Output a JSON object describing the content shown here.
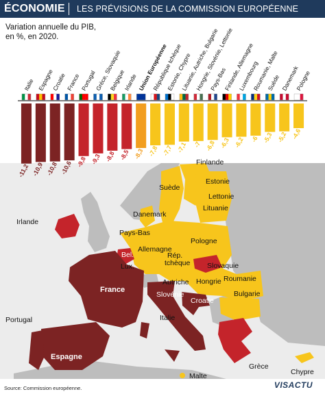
{
  "header": {
    "section": "ÉCONOMIE",
    "title": "LES PRÉVISIONS DE LA COMMISSION EUROPÉENNE"
  },
  "subtitle_line1": "Variation annuelle du PIB,",
  "subtitle_line2": "en %, en 2020.",
  "source": "Source: Commission européenne.",
  "brand": "VISACTU",
  "colors": {
    "dark_red": "#7c2323",
    "red": "#c4242b",
    "orange": "#f29e1f",
    "yellow": "#f7c51c",
    "header_bg": "#1f3a5c"
  },
  "chart_data": {
    "type": "bar",
    "title": "LES PRÉVISIONS DE LA COMMISSION EUROPÉENNE",
    "subtitle": "Variation annuelle du PIB, en %, en 2020.",
    "xlabel": "",
    "ylabel": "",
    "ylim": [
      -12,
      0
    ],
    "grid": false,
    "categories": [
      "Italie",
      "Espagne",
      "Croatie",
      "France",
      "Portugal",
      "Grèce, Slovaquie",
      "Belgique",
      "Irlande",
      "Union Européenne",
      "République tchèque",
      "Estonie, Chypre",
      "Lituanie, Autriche, Bulgarie",
      "Hongrie, Slovénie, Lettonie",
      "Pays-Bas",
      "Finlande, Allemagne",
      "Luxembourg",
      "Roumanie, Malte",
      "Suède",
      "Danemark",
      "Pologne"
    ],
    "values": [
      -11.2,
      -10.9,
      -10.8,
      -10.6,
      -9.8,
      -9.3,
      -8.8,
      -8.5,
      -8.3,
      -7.8,
      -7.7,
      -7.1,
      -7,
      -6.8,
      -6.3,
      -6.2,
      -6,
      -5.3,
      -5.2,
      -4.6
    ],
    "value_labels": [
      "-11,2",
      "-10,9",
      "-10,8",
      "-10,6",
      "-9,8",
      "-9,3",
      "-8,8",
      "-8,5",
      "-8,3",
      "-7,8",
      "-7,7",
      "-7,1",
      "-7",
      "-6,8",
      "-6,3",
      "-6,2",
      "-6",
      "-5,3",
      "-5,2",
      "-4,6"
    ],
    "bar_colors": [
      "#7c2323",
      "#7c2323",
      "#7c2323",
      "#7c2323",
      "#c4242b",
      "#c4242b",
      "#c4242b",
      "#c4242b",
      "#f29e1f",
      "#f7c51c",
      "#f7c51c",
      "#f7c51c",
      "#f7c51c",
      "#f7c51c",
      "#f7c51c",
      "#f7c51c",
      "#f7c51c",
      "#f7c51c",
      "#f7c51c",
      "#f7c51c"
    ]
  },
  "map": {
    "labels": [
      "Finlande",
      "Suède",
      "Estonie",
      "Lettonie",
      "Danemark",
      "Lituanie",
      "Irlande",
      "Pays-Bas",
      "Pologne",
      "Allemagne",
      "Bel.",
      "Lux.",
      "Rép.",
      "tchèque",
      "Slovaquie",
      "France",
      "Autriche",
      "Hongrie",
      "Roumanie",
      "Slovénie",
      "Croatie",
      "Bulgarie",
      "Italie",
      "Portugal",
      "Espagne",
      "Grèce",
      "Chypre",
      "Malte"
    ]
  }
}
